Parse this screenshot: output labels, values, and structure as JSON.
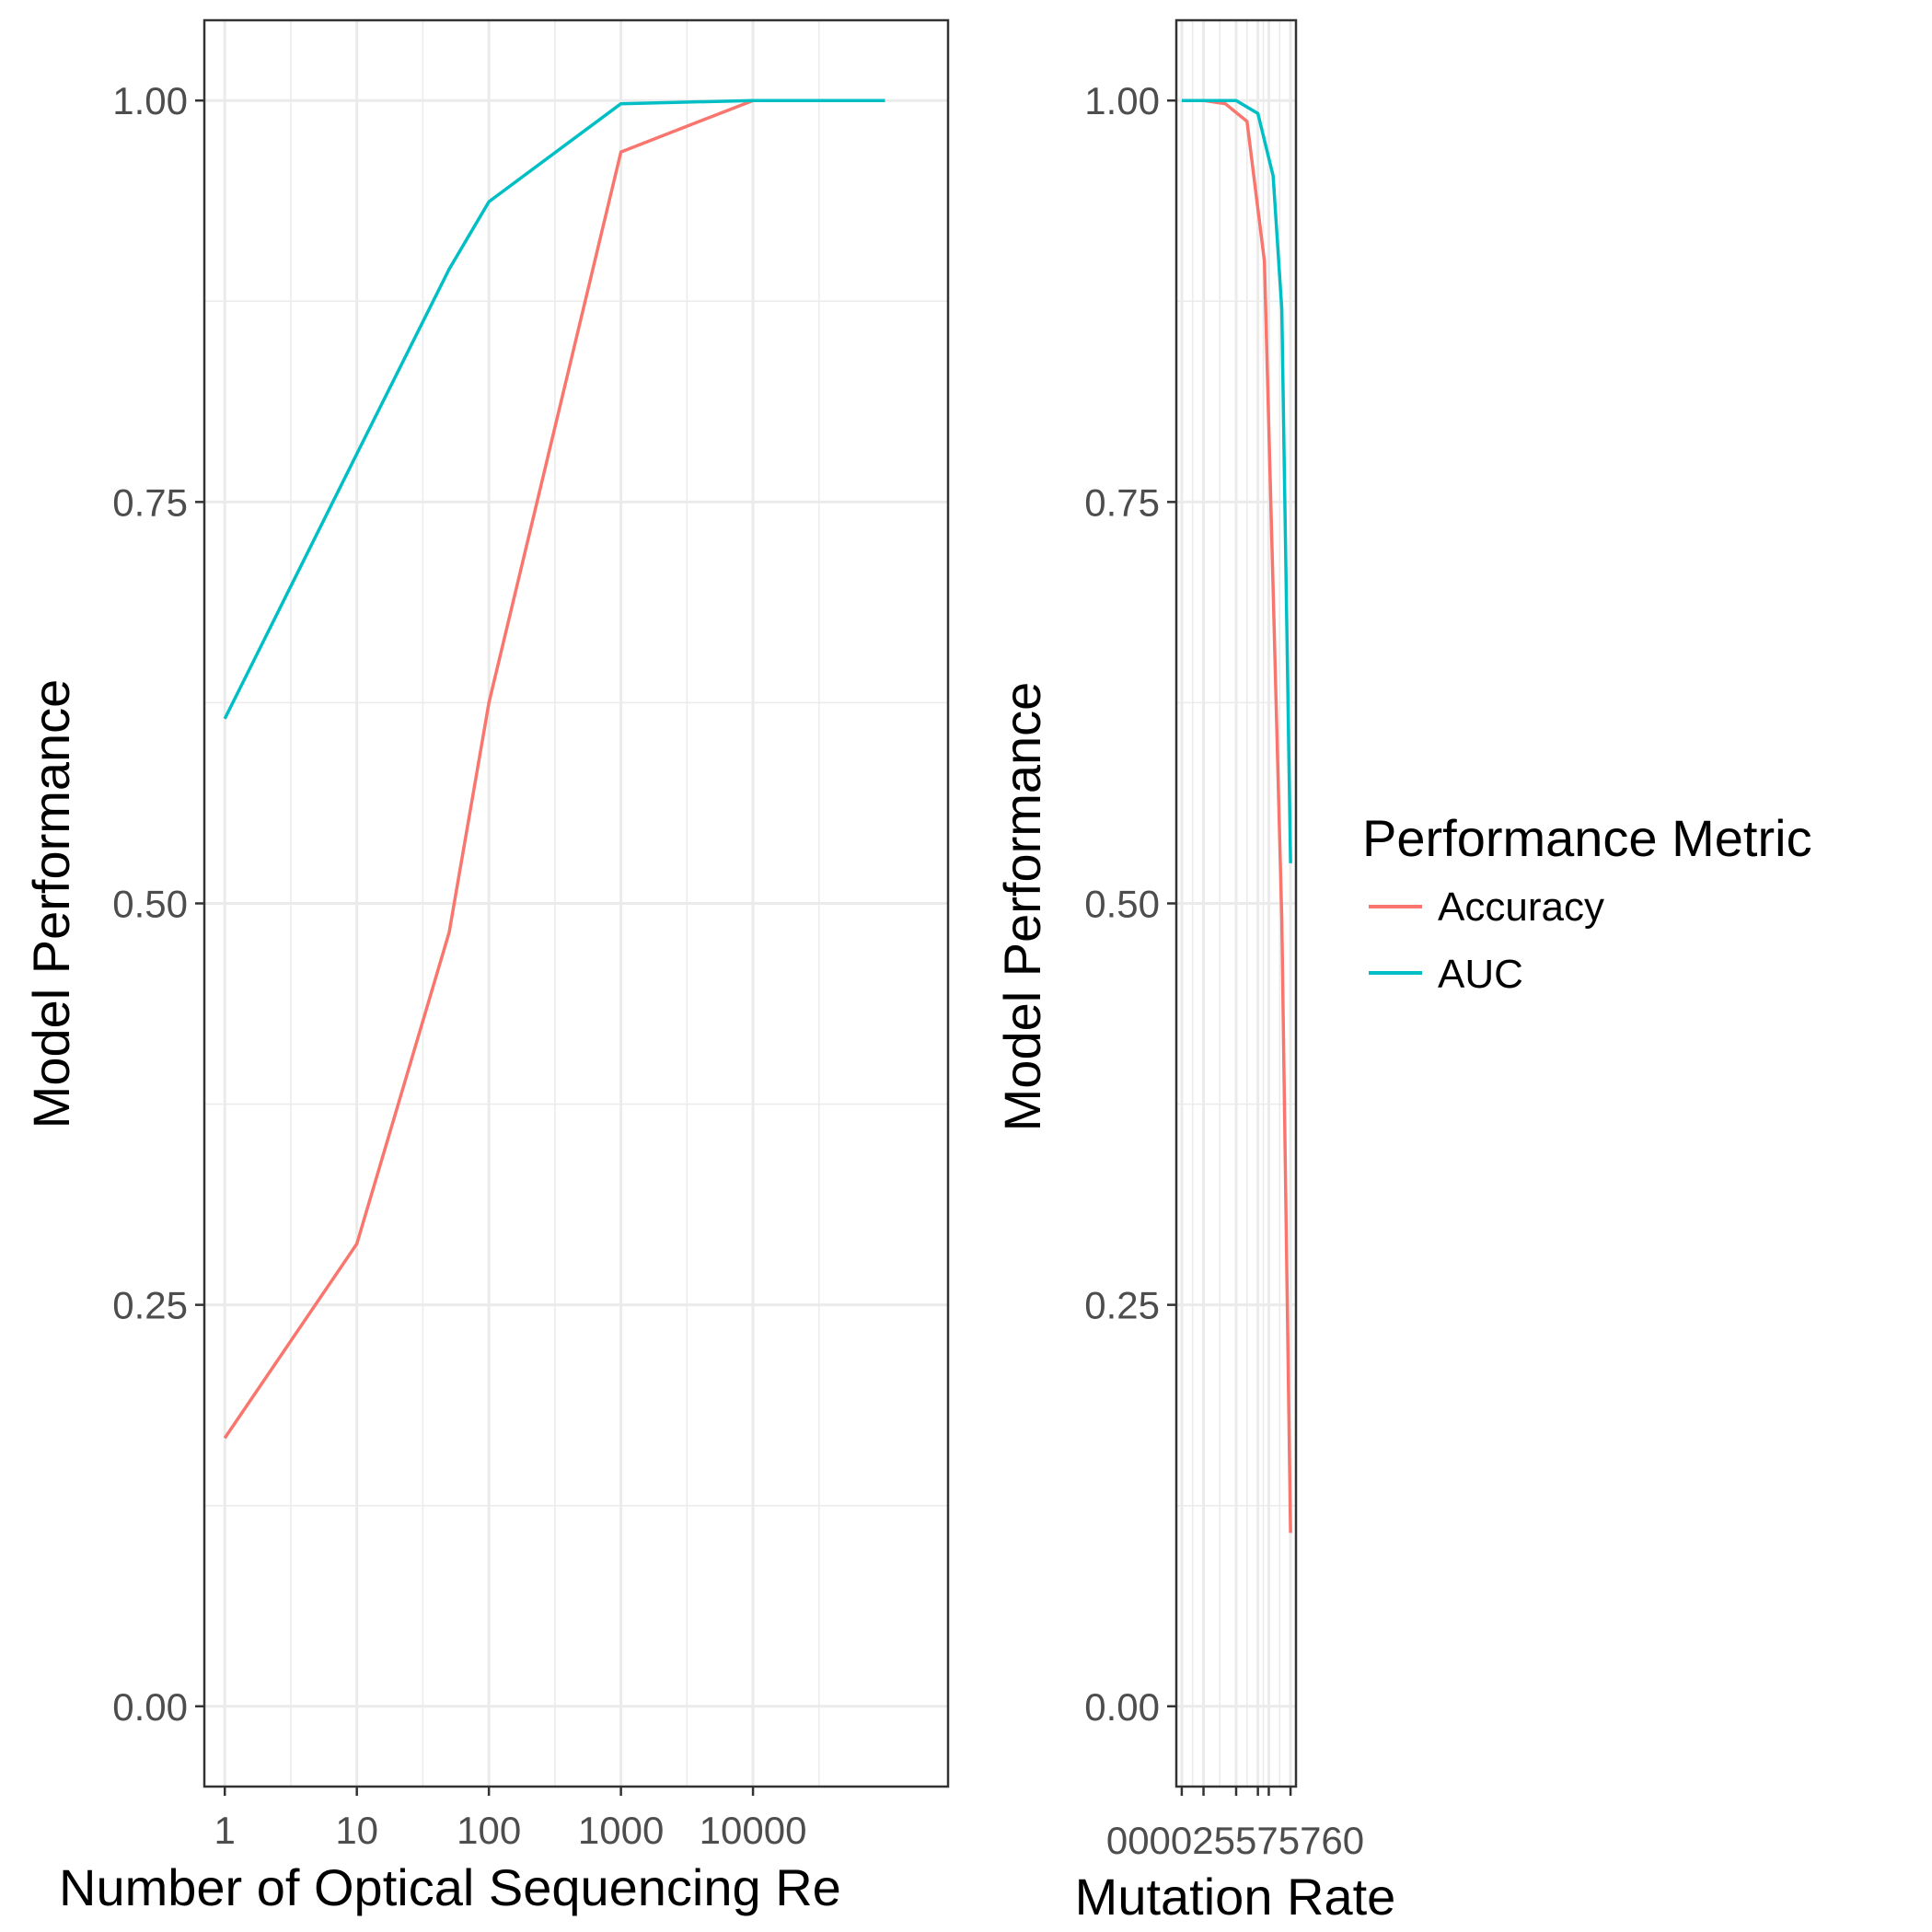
{
  "colors": {
    "Accuracy": "#F8766D",
    "AUC": "#00BFC4",
    "grid": "#ebebeb",
    "panel_border": "#333333"
  },
  "legend": {
    "title": "Performance Metric",
    "items": [
      {
        "label": "Accuracy",
        "color": "#F8766D"
      },
      {
        "label": "AUC",
        "color": "#00BFC4"
      }
    ]
  },
  "chart_data": [
    {
      "type": "line",
      "xlabel": "Number of Optical Sequencing Rе",
      "ylabel": "Model Performance",
      "x_scale": "log10",
      "xlim": [
        0.7,
        300000
      ],
      "ylim": [
        -0.05,
        1.05
      ],
      "xticks": [
        1,
        10,
        100,
        1000,
        10000
      ],
      "xtick_labels": [
        "1",
        "10",
        "100",
        "1000",
        "10000"
      ],
      "yticks": [
        0,
        0.25,
        0.5,
        0.75,
        1.0
      ],
      "ytick_labels": [
        "0.00",
        "0.25",
        "0.50",
        "0.75",
        "1.00"
      ],
      "grid": true,
      "series": [
        {
          "name": "Accuracy",
          "x": [
            1,
            10,
            50,
            100,
            1000,
            10000,
            100000
          ],
          "y": [
            0.167,
            0.288,
            0.482,
            0.625,
            0.968,
            1.0,
            1.0
          ]
        },
        {
          "name": "AUC",
          "x": [
            1,
            10,
            50,
            100,
            1000,
            10000,
            100000
          ],
          "y": [
            0.615,
            0.78,
            0.895,
            0.937,
            0.998,
            1.0,
            1.0
          ]
        }
      ]
    },
    {
      "type": "line",
      "xlabel": "Mutation Rate",
      "ylabel": "Model Performance",
      "x_scale": "linear",
      "xlim": [
        -0.025,
        0.525
      ],
      "ylim": [
        -0.05,
        1.05
      ],
      "xticks": [
        0,
        0.1,
        0.25,
        0.35,
        0.4,
        0.5
      ],
      "xtick_labels": [
        "0",
        "0.1",
        "0.25",
        "0.35",
        "0.4",
        "0.50"
      ],
      "x_tick_text": "000025575760",
      "yticks": [
        0,
        0.25,
        0.5,
        0.75,
        1.0
      ],
      "ytick_labels": [
        "0.00",
        "0.25",
        "0.50",
        "0.75",
        "1.00"
      ],
      "grid": true,
      "series": [
        {
          "name": "Accuracy",
          "x": [
            0,
            0.1,
            0.2,
            0.3,
            0.38,
            0.42,
            0.46,
            0.5
          ],
          "y": [
            1.0,
            1.0,
            0.998,
            0.987,
            0.9,
            0.695,
            0.49,
            0.108
          ]
        },
        {
          "name": "AUC",
          "x": [
            0,
            0.1,
            0.25,
            0.35,
            0.42,
            0.46,
            0.5
          ],
          "y": [
            1.0,
            1.0,
            1.0,
            0.992,
            0.953,
            0.87,
            0.525
          ]
        }
      ]
    }
  ]
}
